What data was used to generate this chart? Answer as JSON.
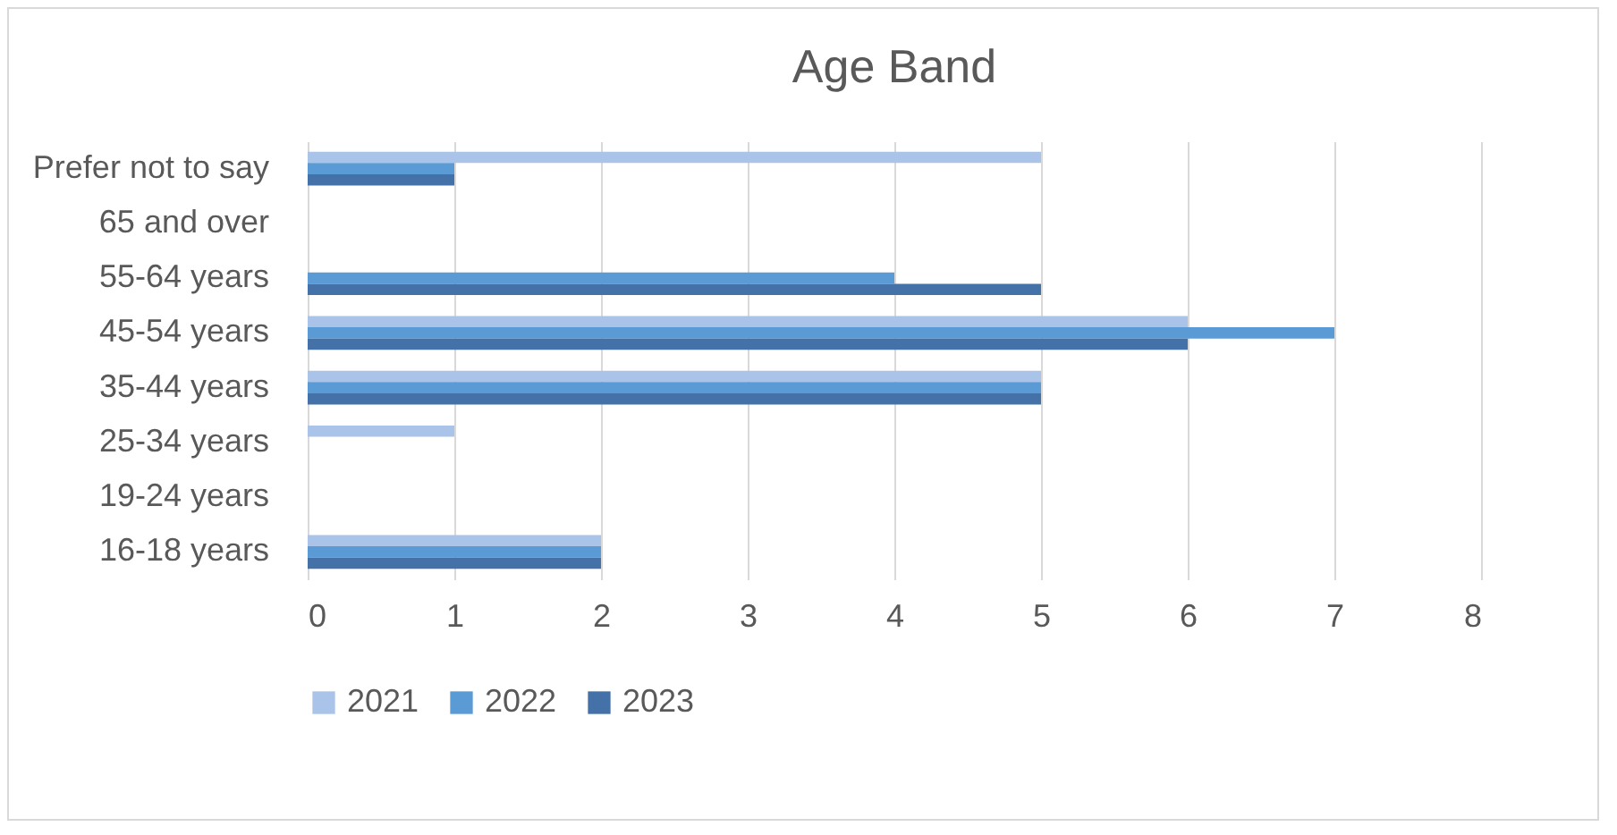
{
  "chart_data": {
    "type": "bar",
    "title": "Age Band",
    "orientation": "horizontal",
    "categories": [
      "Prefer not to say",
      "65 and over",
      "55-64 years",
      "45-54 years",
      "35-44 years",
      "25-34 years",
      "19-24 years",
      "16-18 years"
    ],
    "series": [
      {
        "name": "2021",
        "color": "#a9c4e8",
        "values": [
          5,
          0,
          0,
          6,
          5,
          1,
          0,
          2
        ]
      },
      {
        "name": "2022",
        "color": "#5b9bd5",
        "values": [
          1,
          0,
          4,
          7,
          5,
          0,
          0,
          2
        ]
      },
      {
        "name": "2023",
        "color": "#4472a8",
        "values": [
          1,
          0,
          5,
          6,
          5,
          0,
          0,
          2
        ]
      }
    ],
    "xlim": [
      0,
      8
    ],
    "xticks": [
      0,
      1,
      2,
      3,
      4,
      5,
      6,
      7,
      8
    ],
    "grid": "x",
    "legend": "bottom"
  }
}
